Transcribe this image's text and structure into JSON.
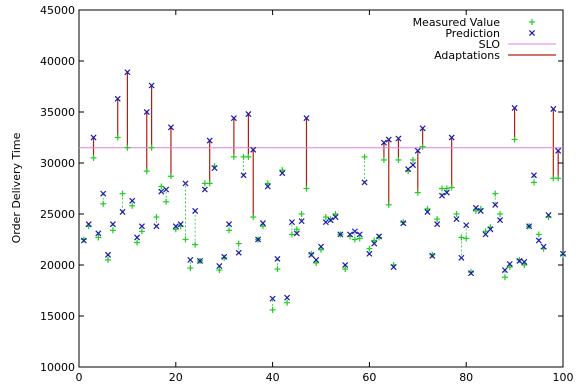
{
  "chart_data": {
    "type": "scatter",
    "title": "",
    "xlabel": "",
    "ylabel": "Order Delivery Time",
    "xlim": [
      0,
      100
    ],
    "ylim": [
      10000,
      45000
    ],
    "xticks": [
      0,
      20,
      40,
      60,
      80,
      100
    ],
    "yticks": [
      10000,
      15000,
      20000,
      25000,
      30000,
      35000,
      40000,
      45000
    ],
    "grid": false,
    "legend_position": "top-right",
    "colors": {
      "measured": "#22cc22",
      "prediction": "#1a1aaa",
      "slo": "#e080e0",
      "adaptation": "#b02010",
      "connector": "#22cc22"
    },
    "slo": 31500,
    "legend": [
      "Measured Value",
      "Prediction",
      "SLO",
      "Adaptations"
    ],
    "measured": [
      [
        1,
        22500
      ],
      [
        2,
        23800
      ],
      [
        3,
        30500
      ],
      [
        4,
        22700
      ],
      [
        5,
        26000
      ],
      [
        6,
        20500
      ],
      [
        7,
        23400
      ],
      [
        8,
        32500
      ],
      [
        9,
        27000
      ],
      [
        10,
        31500
      ],
      [
        11,
        25800
      ],
      [
        12,
        22200
      ],
      [
        13,
        23300
      ],
      [
        14,
        29200
      ],
      [
        15,
        31500
      ],
      [
        16,
        24700
      ],
      [
        17,
        27700
      ],
      [
        18,
        26200
      ],
      [
        19,
        28700
      ],
      [
        20,
        23500
      ],
      [
        21,
        23800
      ],
      [
        22,
        22500
      ],
      [
        23,
        19700
      ],
      [
        24,
        22000
      ],
      [
        25,
        20400
      ],
      [
        26,
        28000
      ],
      [
        27,
        28000
      ],
      [
        28,
        29700
      ],
      [
        29,
        19500
      ],
      [
        30,
        20700
      ],
      [
        31,
        23400
      ],
      [
        32,
        30600
      ],
      [
        33,
        22100
      ],
      [
        34,
        30600
      ],
      [
        35,
        30600
      ],
      [
        36,
        24700
      ],
      [
        37,
        22500
      ],
      [
        38,
        23800
      ],
      [
        39,
        28000
      ],
      [
        40,
        15600
      ],
      [
        41,
        19600
      ],
      [
        42,
        29300
      ],
      [
        43,
        16300
      ],
      [
        44,
        23000
      ],
      [
        45,
        23500
      ],
      [
        46,
        25000
      ],
      [
        47,
        27500
      ],
      [
        48,
        21100
      ],
      [
        49,
        20200
      ],
      [
        50,
        21500
      ],
      [
        51,
        24700
      ],
      [
        52,
        24500
      ],
      [
        53,
        25000
      ],
      [
        54,
        23000
      ],
      [
        55,
        19600
      ],
      [
        56,
        22800
      ],
      [
        57,
        22500
      ],
      [
        58,
        22600
      ],
      [
        59,
        30600
      ],
      [
        60,
        21600
      ],
      [
        61,
        22400
      ],
      [
        62,
        22700
      ],
      [
        63,
        30300
      ],
      [
        64,
        25900
      ],
      [
        65,
        20000
      ],
      [
        66,
        30300
      ],
      [
        67,
        24200
      ],
      [
        68,
        29200
      ],
      [
        69,
        30300
      ],
      [
        70,
        27100
      ],
      [
        71,
        31600
      ],
      [
        72,
        25500
      ],
      [
        73,
        21000
      ],
      [
        74,
        24500
      ],
      [
        75,
        27500
      ],
      [
        76,
        27500
      ],
      [
        77,
        27600
      ],
      [
        78,
        25000
      ],
      [
        79,
        22700
      ],
      [
        80,
        22600
      ],
      [
        81,
        19300
      ],
      [
        82,
        25300
      ],
      [
        83,
        25500
      ],
      [
        84,
        23300
      ],
      [
        85,
        23700
      ],
      [
        86,
        27000
      ],
      [
        87,
        25000
      ],
      [
        88,
        18800
      ],
      [
        89,
        19800
      ],
      [
        90,
        32300
      ],
      [
        91,
        20500
      ],
      [
        92,
        20000
      ],
      [
        93,
        23800
      ],
      [
        94,
        28100
      ],
      [
        95,
        23000
      ],
      [
        96,
        21600
      ],
      [
        97,
        24700
      ],
      [
        98,
        28500
      ],
      [
        99,
        28500
      ],
      [
        100,
        21000
      ]
    ],
    "prediction": [
      [
        1,
        22400
      ],
      [
        2,
        24000
      ],
      [
        3,
        32500
      ],
      [
        4,
        23100
      ],
      [
        5,
        27000
      ],
      [
        6,
        21000
      ],
      [
        7,
        24000
      ],
      [
        8,
        36300
      ],
      [
        9,
        25200
      ],
      [
        10,
        38900
      ],
      [
        11,
        26300
      ],
      [
        12,
        22700
      ],
      [
        13,
        23800
      ],
      [
        14,
        35000
      ],
      [
        15,
        37600
      ],
      [
        16,
        23800
      ],
      [
        17,
        27200
      ],
      [
        18,
        27400
      ],
      [
        19,
        33500
      ],
      [
        20,
        23800
      ],
      [
        21,
        24000
      ],
      [
        22,
        28000
      ],
      [
        23,
        20500
      ],
      [
        24,
        25300
      ],
      [
        25,
        20400
      ],
      [
        26,
        27400
      ],
      [
        27,
        32200
      ],
      [
        28,
        29500
      ],
      [
        29,
        19900
      ],
      [
        30,
        20800
      ],
      [
        31,
        24000
      ],
      [
        32,
        34400
      ],
      [
        33,
        21200
      ],
      [
        34,
        28800
      ],
      [
        35,
        34800
      ],
      [
        36,
        31300
      ],
      [
        37,
        22500
      ],
      [
        38,
        24100
      ],
      [
        39,
        27700
      ],
      [
        40,
        16700
      ],
      [
        41,
        20600
      ],
      [
        42,
        29000
      ],
      [
        43,
        16800
      ],
      [
        44,
        24200
      ],
      [
        45,
        23100
      ],
      [
        46,
        24300
      ],
      [
        47,
        34400
      ],
      [
        48,
        21000
      ],
      [
        49,
        20500
      ],
      [
        50,
        21800
      ],
      [
        51,
        24200
      ],
      [
        52,
        24400
      ],
      [
        53,
        24700
      ],
      [
        54,
        23000
      ],
      [
        55,
        20000
      ],
      [
        56,
        23000
      ],
      [
        57,
        23300
      ],
      [
        58,
        23000
      ],
      [
        59,
        28100
      ],
      [
        60,
        21100
      ],
      [
        61,
        22100
      ],
      [
        62,
        22800
      ],
      [
        63,
        32000
      ],
      [
        64,
        32300
      ],
      [
        65,
        19800
      ],
      [
        66,
        32400
      ],
      [
        67,
        24100
      ],
      [
        68,
        29400
      ],
      [
        69,
        29800
      ],
      [
        70,
        31200
      ],
      [
        71,
        33400
      ],
      [
        72,
        25200
      ],
      [
        73,
        20900
      ],
      [
        74,
        24000
      ],
      [
        75,
        26800
      ],
      [
        76,
        27100
      ],
      [
        77,
        32500
      ],
      [
        78,
        24500
      ],
      [
        79,
        20700
      ],
      [
        80,
        23900
      ],
      [
        81,
        19200
      ],
      [
        82,
        25600
      ],
      [
        83,
        25300
      ],
      [
        84,
        23000
      ],
      [
        85,
        23500
      ],
      [
        86,
        25900
      ],
      [
        87,
        24400
      ],
      [
        88,
        19500
      ],
      [
        89,
        20100
      ],
      [
        90,
        35400
      ],
      [
        91,
        20400
      ],
      [
        92,
        20300
      ],
      [
        93,
        23800
      ],
      [
        94,
        28800
      ],
      [
        95,
        22400
      ],
      [
        96,
        21800
      ],
      [
        97,
        24900
      ],
      [
        98,
        35300
      ],
      [
        99,
        31200
      ],
      [
        100,
        21100
      ]
    ],
    "adaptations": [
      3,
      8,
      10,
      14,
      15,
      19,
      27,
      32,
      35,
      36,
      47,
      63,
      64,
      66,
      70,
      71,
      77,
      90,
      98,
      99
    ]
  }
}
